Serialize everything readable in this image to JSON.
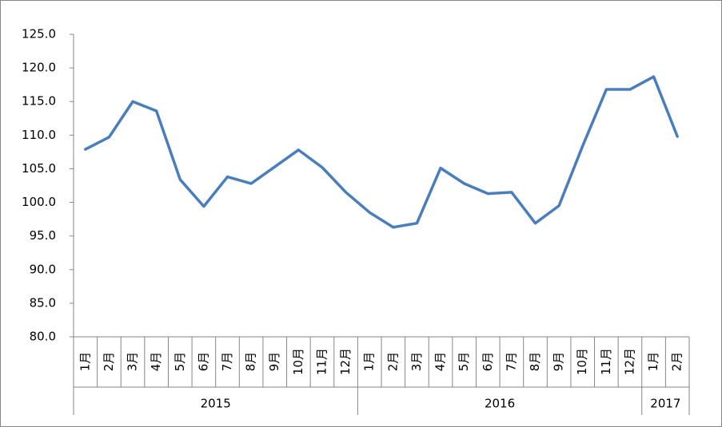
{
  "chart_data": {
    "type": "line",
    "groups": [
      {
        "label": "2015",
        "categories": [
          "1月",
          "2月",
          "3月",
          "4月",
          "5月",
          "6月",
          "7月",
          "8月",
          "9月",
          "10月",
          "11月",
          "12月"
        ]
      },
      {
        "label": "2016",
        "categories": [
          "1月",
          "2月",
          "3月",
          "4月",
          "5月",
          "6月",
          "7月",
          "8月",
          "9月",
          "10月",
          "11月",
          "12月"
        ]
      },
      {
        "label": "2017",
        "categories": [
          "1月",
          "2月"
        ]
      }
    ],
    "series": [
      {
        "color": "#4a7ebb",
        "values": [
          107.9,
          109.7,
          115.0,
          113.6,
          103.4,
          99.4,
          103.8,
          102.8,
          105.3,
          107.8,
          105.2,
          101.5,
          98.5,
          96.3,
          96.9,
          105.1,
          102.8,
          101.3,
          101.5,
          96.9,
          99.5,
          108.4,
          116.8,
          116.8,
          118.7,
          109.8
        ]
      }
    ],
    "ylim": [
      80,
      125
    ],
    "yticks": [
      {
        "value": 80,
        "label": "80.0"
      },
      {
        "value": 85,
        "label": "85.0"
      },
      {
        "value": 90,
        "label": "90.0"
      },
      {
        "value": 95,
        "label": "95.0"
      },
      {
        "value": 100,
        "label": "100.0"
      },
      {
        "value": 105,
        "label": "105.0"
      },
      {
        "value": 110,
        "label": "110.0"
      },
      {
        "value": 115,
        "label": "115.0"
      },
      {
        "value": 120,
        "label": "120.0"
      },
      {
        "value": 125,
        "label": "125.0"
      }
    ]
  }
}
